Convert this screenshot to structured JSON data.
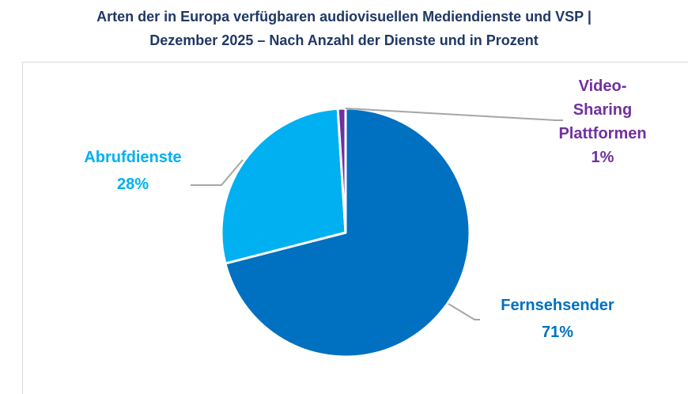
{
  "title_line1": "Arten der in Europa verfügbaren audiovisuellen Mediendienste und VSP |",
  "title_line2": "Dezember 2025 – Nach Anzahl der Dienste und in Prozent",
  "chart_data": {
    "type": "pie",
    "title": "Arten der in Europa verfügbaren audiovisuellen Mediendienste und VSP | Dezember 2025 – Nach Anzahl der Dienste und in Prozent",
    "unit": "%",
    "slices": [
      {
        "label": "Fernsehsender",
        "label_lines": [
          "Fernsehsender"
        ],
        "value": 71,
        "value_label": "71%",
        "color": "#0070c0"
      },
      {
        "label": "Abrufdienste",
        "label_lines": [
          "Abrufdienste"
        ],
        "value": 28,
        "value_label": "28%",
        "color": "#00b0f0"
      },
      {
        "label": "Video-Sharing Plattformen",
        "label_lines": [
          "Video-",
          "Sharing",
          "Plattformen"
        ],
        "value": 1,
        "value_label": "1%",
        "color": "#7030a0"
      }
    ],
    "legend": "none",
    "data_labels": "outside"
  }
}
